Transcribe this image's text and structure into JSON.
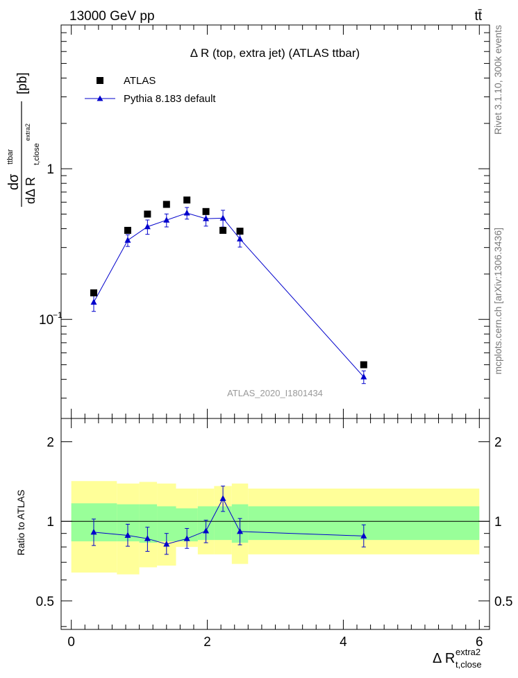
{
  "header": {
    "energy": "13000 GeV pp",
    "process": "tt̄"
  },
  "side_text": {
    "rivet": "Rivet 3.1.10,  300k events",
    "mcplots": "mcplots.cern.ch [arXiv:1306.3436]"
  },
  "chart_data": [
    {
      "type": "scatter",
      "scale": "log",
      "title": "Δ R (top, extra jet) (ATLAS ttbar)",
      "watermark": "ATLAS_2020_I1801434",
      "ylabel": "dσ^ttbar / dΔ R_t,close^extra2 [pb]",
      "ylabel_parts": {
        "d1": "d",
        "sigma": "dσ",
        "sup": "ttbar",
        "d2": "dΔ R",
        "sub": "t,close",
        "subsup": "extra2",
        "unit": "[pb]"
      },
      "xlim": [
        -0.15,
        6.15
      ],
      "ylim": [
        0.022,
        9.0
      ],
      "yticks": [
        {
          "value": 1,
          "label": "1"
        },
        {
          "value": 0.1,
          "label": "10",
          "exp": "−1"
        }
      ],
      "legend": [
        "ATLAS",
        "Pythia 8.183 default"
      ],
      "legend_position": "top-left",
      "series": [
        {
          "name": "ATLAS",
          "color": "#000000",
          "marker": "square",
          "x": [
            0.33,
            0.83,
            1.12,
            1.4,
            1.7,
            1.98,
            2.23,
            2.48,
            4.3
          ],
          "y": [
            0.15,
            0.39,
            0.5,
            0.58,
            0.62,
            0.52,
            0.39,
            0.385,
            0.05
          ]
        },
        {
          "name": "Pythia 8.183 default",
          "color": "#0000cc",
          "marker": "triangle",
          "x": [
            0.33,
            0.83,
            1.12,
            1.4,
            1.7,
            1.98,
            2.23,
            2.48,
            4.3
          ],
          "y": [
            0.13,
            0.335,
            0.412,
            0.456,
            0.508,
            0.466,
            0.47,
            0.342,
            0.0415
          ],
          "yerr_low": [
            0.017,
            0.03,
            0.045,
            0.045,
            0.045,
            0.05,
            0.06,
            0.04,
            0.004
          ],
          "yerr_high": [
            0.017,
            0.03,
            0.045,
            0.045,
            0.045,
            0.05,
            0.06,
            0.04,
            0.004
          ]
        }
      ]
    },
    {
      "type": "line",
      "scale": "log",
      "ylabel": "Ratio to ATLAS",
      "xlabel": "Δ R",
      "xlabel_sub": "t,close",
      "xlabel_sup": "extra2",
      "xlim": [
        -0.15,
        6.15
      ],
      "ylim": [
        0.39,
        2.45
      ],
      "yticks": [
        {
          "value": 0.5,
          "label": "0.5"
        },
        {
          "value": 1,
          "label": "1"
        },
        {
          "value": 2,
          "label": "2"
        }
      ],
      "xticks": [
        0,
        2,
        4,
        6
      ],
      "reference_line": 1,
      "bands": {
        "bin_edges": [
          0.0,
          0.67,
          1.0,
          1.26,
          1.54,
          1.86,
          2.1,
          2.36,
          2.6,
          6.0
        ],
        "inner_low": [
          0.84,
          0.84,
          0.83,
          0.84,
          0.84,
          0.85,
          0.85,
          0.83,
          0.85
        ],
        "inner_high": [
          1.17,
          1.16,
          1.16,
          1.14,
          1.12,
          1.14,
          1.14,
          1.16,
          1.14
        ],
        "outer_low": [
          0.64,
          0.63,
          0.67,
          0.68,
          0.8,
          0.75,
          0.75,
          0.69,
          0.75
        ],
        "outer_high": [
          1.42,
          1.39,
          1.41,
          1.39,
          1.33,
          1.33,
          1.36,
          1.39,
          1.33
        ],
        "inner_color": "#99ff99",
        "outer_color": "#ffff99"
      },
      "series": [
        {
          "name": "Pythia 8.183 default",
          "color": "#0000cc",
          "x": [
            0.33,
            0.83,
            1.12,
            1.4,
            1.7,
            1.98,
            2.23,
            2.48,
            4.3
          ],
          "y": [
            0.91,
            0.885,
            0.86,
            0.82,
            0.86,
            0.92,
            1.22,
            0.915,
            0.88
          ],
          "yerr_low": [
            0.1,
            0.08,
            0.09,
            0.07,
            0.07,
            0.09,
            0.13,
            0.1,
            0.08
          ],
          "yerr_high": [
            0.11,
            0.09,
            0.09,
            0.08,
            0.08,
            0.09,
            0.14,
            0.11,
            0.09
          ]
        }
      ]
    }
  ]
}
